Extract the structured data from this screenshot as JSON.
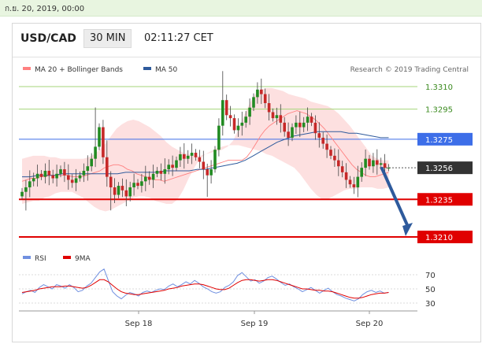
{
  "date_bar": "ก.ย. 20, 2019, 00:00",
  "header": {
    "pair": "USD/CAD",
    "timeframe": "30 MIN",
    "clock": "02:11:27 CET"
  },
  "colors": {
    "bollinger": "#ff8080",
    "bollinger_fill": "#fde0e0",
    "ma50": "#2e5a9c",
    "candle_up": "#228b22",
    "candle_down": "#c62828",
    "green_level": "#a5d67a",
    "blue_level": "#3d6ee8",
    "red_level": "#e00000",
    "price_box": "#333333",
    "arrow": "#2e5a9c",
    "rsi": "#7090e0",
    "ma9": "#e00000"
  },
  "chart_data": {
    "type": "candlestick",
    "instrument": "USD/CAD",
    "timeframe": "30 MIN",
    "watermark": "Research © 2019 Trading Central",
    "legend": [
      {
        "name": "MA 20 + Bollinger Bands",
        "color": "#ff8080"
      },
      {
        "name": "MA 50",
        "color": "#2e5a9c"
      }
    ],
    "ylim": [
      1.3202,
      1.3322
    ],
    "x_ticks": [
      "Sep 18",
      "Sep 19",
      "Sep 20"
    ],
    "levels": [
      {
        "value": 1.331,
        "label": "1.3310",
        "kind": "resistance"
      },
      {
        "value": 1.3295,
        "label": "1.3295",
        "kind": "resistance"
      },
      {
        "value": 1.3275,
        "label": "1.3275",
        "kind": "pivot"
      },
      {
        "value": 1.3256,
        "label": "1.3256",
        "kind": "last"
      },
      {
        "value": 1.3235,
        "label": "1.3235",
        "kind": "target"
      },
      {
        "value": 1.321,
        "label": "1.3210",
        "kind": "target"
      }
    ],
    "close": [
      1.324,
      1.3243,
      1.3247,
      1.3249,
      1.3252,
      1.325,
      1.3254,
      1.3251,
      1.3249,
      1.3252,
      1.3255,
      1.3251,
      1.3248,
      1.3246,
      1.3249,
      1.3251,
      1.3254,
      1.3257,
      1.3262,
      1.327,
      1.3283,
      1.3263,
      1.325,
      1.3243,
      1.3238,
      1.3244,
      1.3241,
      1.3237,
      1.3243,
      1.3246,
      1.3244,
      1.3247,
      1.325,
      1.3248,
      1.3252,
      1.3254,
      1.3252,
      1.3255,
      1.3258,
      1.3256,
      1.3261,
      1.3265,
      1.3262,
      1.3264,
      1.3266,
      1.3263,
      1.326,
      1.3255,
      1.3251,
      1.3255,
      1.3268,
      1.3284,
      1.3301,
      1.3291,
      1.3289,
      1.3281,
      1.3284,
      1.3286,
      1.329,
      1.3296,
      1.3303,
      1.3308,
      1.3305,
      1.3299,
      1.3293,
      1.3289,
      1.3291,
      1.3286,
      1.328,
      1.3276,
      1.3283,
      1.3286,
      1.3283,
      1.3286,
      1.329,
      1.3286,
      1.3279,
      1.3276,
      1.3272,
      1.3268,
      1.3264,
      1.3261,
      1.3257,
      1.3253,
      1.3248,
      1.3245,
      1.3243,
      1.325,
      1.3256,
      1.3262,
      1.3257,
      1.3261,
      1.3258,
      1.3259,
      1.3256,
      1.3256
    ],
    "ma20": [
      1.3247,
      1.3248,
      1.3249,
      1.3249,
      1.325,
      1.325,
      1.3251,
      1.3251,
      1.3251,
      1.3251,
      1.3251,
      1.325,
      1.325,
      1.325,
      1.3251,
      1.3252,
      1.3253,
      1.3254,
      1.3256,
      1.3257,
      1.3258,
      1.3258,
      1.3257,
      1.3255,
      1.3254,
      1.3252,
      1.3251,
      1.325,
      1.3249,
      1.3248,
      1.3248,
      1.3247,
      1.3248,
      1.3249,
      1.325,
      1.3251,
      1.3252,
      1.3253,
      1.3254,
      1.3255,
      1.3256,
      1.3257,
      1.3258,
      1.3259,
      1.326,
      1.3261,
      1.3261,
      1.3261,
      1.3261,
      1.3263,
      1.3267,
      1.3272,
      1.3277,
      1.3281,
      1.3284,
      1.3286,
      1.3288,
      1.329,
      1.3292,
      1.3293,
      1.3294,
      1.3293,
      1.3292,
      1.329,
      1.3288,
      1.3285,
      1.3282,
      1.3278,
      1.3274,
      1.327,
      1.3266,
      1.3262,
      1.3258,
      1.3255,
      1.3253,
      1.3251,
      1.325,
      1.325,
      1.3251,
      1.3252,
      1.3253
    ],
    "bb_upper": [
      1.3262,
      1.3263,
      1.3264,
      1.3264,
      1.3264,
      1.3263,
      1.3263,
      1.3262,
      1.3262,
      1.3262,
      1.3262,
      1.3262,
      1.3263,
      1.3265,
      1.3268,
      1.3272,
      1.3277,
      1.3282,
      1.3285,
      1.3287,
      1.3288,
      1.3287,
      1.3285,
      1.3283,
      1.328,
      1.3277,
      1.3273,
      1.327,
      1.3268,
      1.3266,
      1.3265,
      1.3264,
      1.3264,
      1.3265,
      1.3266,
      1.3267,
      1.3268,
      1.327,
      1.3274,
      1.3282,
      1.3291,
      1.3299,
      1.3305,
      1.3308,
      1.3309,
      1.3309,
      1.3308,
      1.3307,
      1.3305,
      1.3304,
      1.3303,
      1.3302,
      1.33,
      1.3299,
      1.3298,
      1.3297,
      1.3295,
      1.3292,
      1.3288,
      1.3284,
      1.3279,
      1.3274,
      1.3269,
      1.3264,
      1.3262,
      1.3261,
      1.3261
    ],
    "bb_lower": [
      1.3232,
      1.3233,
      1.3234,
      1.3234,
      1.3236,
      1.3237,
      1.3239,
      1.324,
      1.324,
      1.324,
      1.3238,
      1.3236,
      1.3233,
      1.323,
      1.3228,
      1.3227,
      1.3228,
      1.323,
      1.3232,
      1.3234,
      1.3236,
      1.3237,
      1.3237,
      1.3236,
      1.3234,
      1.3233,
      1.3232,
      1.3232,
      1.3235,
      1.3241,
      1.3249,
      1.3256,
      1.3262,
      1.3265,
      1.3267,
      1.3269,
      1.327,
      1.3271,
      1.3271,
      1.3271,
      1.327,
      1.3269,
      1.3268,
      1.3267,
      1.3265,
      1.3264,
      1.3262,
      1.326,
      1.3258,
      1.3256,
      1.3252,
      1.3247,
      1.3242,
      1.3238,
      1.3235,
      1.3235,
      1.3237,
      1.3239,
      1.3241,
      1.3242,
      1.3242,
      1.3243,
      1.3243,
      1.3243,
      1.3242,
      1.3242,
      1.3243
    ],
    "ma50": [
      1.325,
      1.325,
      1.3251,
      1.3251,
      1.3251,
      1.3252,
      1.3252,
      1.3252,
      1.3252,
      1.3252,
      1.3252,
      1.3252,
      1.3252,
      1.3253,
      1.3253,
      1.3253,
      1.3253,
      1.3253,
      1.3254,
      1.3254,
      1.3254,
      1.3254,
      1.3255,
      1.3255,
      1.3256,
      1.3257,
      1.3258,
      1.3259,
      1.3261,
      1.3264,
      1.3267,
      1.327,
      1.3273,
      1.3275,
      1.3277,
      1.3278,
      1.3279,
      1.328,
      1.328,
      1.328,
      1.328,
      1.3279,
      1.3279,
      1.3278,
      1.3277,
      1.3276,
      1.3276
    ],
    "rsi": {
      "legend": [
        {
          "name": "RSI",
          "color": "#7090e0"
        },
        {
          "name": "9MA",
          "color": "#e00000"
        }
      ],
      "ylim": [
        25,
        80
      ],
      "ticks": [
        "70",
        "50",
        "30"
      ],
      "values": [
        43,
        46,
        48,
        45,
        52,
        56,
        53,
        50,
        56,
        54,
        51,
        56,
        52,
        46,
        48,
        54,
        58,
        66,
        74,
        78,
        62,
        46,
        40,
        36,
        41,
        45,
        43,
        40,
        45,
        47,
        45,
        48,
        50,
        49,
        54,
        57,
        53,
        56,
        60,
        57,
        62,
        58,
        53,
        50,
        46,
        44,
        46,
        52,
        55,
        60,
        69,
        73,
        67,
        61,
        63,
        58,
        61,
        66,
        68,
        64,
        59,
        55,
        57,
        53,
        50,
        46,
        49,
        52,
        48,
        44,
        48,
        51,
        46,
        42,
        40,
        37,
        35,
        33,
        36,
        42,
        46,
        48,
        45,
        47,
        44,
        45
      ],
      "ma9": [
        45,
        46,
        47,
        48,
        50,
        51,
        52,
        53,
        53,
        53,
        54,
        54,
        53,
        52,
        51,
        52,
        55,
        59,
        63,
        63,
        60,
        55,
        50,
        46,
        44,
        43,
        42,
        42,
        43,
        44,
        45,
        46,
        47,
        48,
        50,
        51,
        52,
        54,
        55,
        56,
        57,
        57,
        56,
        54,
        52,
        50,
        49,
        49,
        51,
        55,
        59,
        62,
        63,
        63,
        62,
        61,
        62,
        63,
        63,
        62,
        60,
        58,
        56,
        54,
        52,
        50,
        50,
        49,
        48,
        48,
        47,
        47,
        46,
        44,
        42,
        40,
        38,
        37,
        37,
        38,
        40,
        42,
        43,
        44,
        44,
        45
      ]
    }
  }
}
